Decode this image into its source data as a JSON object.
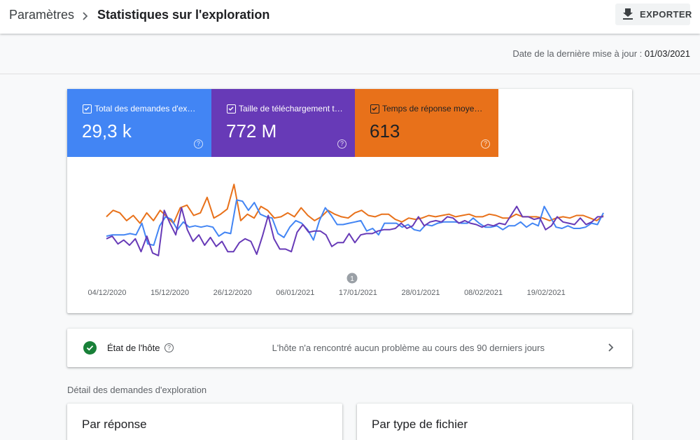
{
  "header": {
    "breadcrumb_parent": "Paramètres",
    "page_title": "Statistiques sur l'exploration",
    "export_label": "EXPORTER"
  },
  "update": {
    "label": "Date de la dernière mise à jour : ",
    "value": "01/03/2021"
  },
  "metrics": [
    {
      "label": "Total des demandes d'exploration",
      "value": "29,3 k",
      "color": "#4285f4",
      "checked": true
    },
    {
      "label": "Taille de téléchargement totale",
      "value": "772 M",
      "color": "#673ab7",
      "checked": true
    },
    {
      "label": "Temps de réponse moyen (ms)",
      "value": "613",
      "color": "#e8711a",
      "checked": true
    }
  ],
  "chart_data": {
    "type": "line",
    "x_ticks": [
      "04/12/2020",
      "15/12/2020",
      "26/12/2020",
      "06/01/2021",
      "17/01/2021",
      "28/01/2021",
      "08/02/2021",
      "19/02/2021"
    ],
    "annotation": "1",
    "series": [
      {
        "name": "Total des demandes d'exploration",
        "color": "#4285f4",
        "values": [
          40,
          41,
          41,
          41,
          42,
          41,
          50,
          34,
          33,
          48,
          55,
          53,
          45,
          51,
          47,
          48,
          47,
          48,
          47,
          40,
          43,
          42,
          68,
          67,
          60,
          66,
          57,
          55,
          54,
          42,
          39,
          47,
          52,
          50,
          45,
          37,
          52,
          62,
          56,
          49,
          49,
          50,
          51,
          52,
          44,
          46,
          41,
          50,
          50,
          50,
          47,
          49,
          45,
          44,
          49,
          48,
          50,
          51,
          51,
          51,
          50,
          50,
          54,
          50,
          47,
          47,
          48,
          45,
          48,
          48,
          51,
          47,
          50,
          48,
          63,
          55,
          47,
          46,
          48,
          46,
          46,
          47,
          50,
          49,
          58
        ]
      },
      {
        "name": "Taille de téléchargement totale",
        "color": "#673ab7",
        "values": [
          38,
          40,
          34,
          37,
          33,
          38,
          28,
          40,
          27,
          25,
          60,
          50,
          41,
          62,
          45,
          36,
          41,
          33,
          39,
          32,
          36,
          28,
          28,
          35,
          38,
          36,
          26,
          40,
          56,
          38,
          30,
          30,
          28,
          43,
          49,
          43,
          44,
          44,
          41,
          32,
          35,
          35,
          42,
          35,
          41,
          42,
          42,
          44,
          45,
          45,
          46,
          50,
          46,
          48,
          55,
          48,
          51,
          52,
          51,
          55,
          54,
          50,
          52,
          50,
          49,
          47,
          49,
          48,
          50,
          49,
          56,
          63,
          55,
          55,
          53,
          54,
          45,
          48,
          55,
          51,
          50,
          49,
          54,
          49,
          51,
          55,
          55
        ]
      },
      {
        "name": "Temps de réponse moyen (ms)",
        "color": "#e8711a",
        "values": [
          55,
          60,
          58,
          52,
          56,
          50,
          58,
          52,
          60,
          55,
          50,
          62,
          64,
          56,
          58,
          70,
          54,
          57,
          61,
          80,
          52,
          57,
          54,
          63,
          60,
          54,
          55,
          58,
          55,
          62,
          56,
          52,
          55,
          60,
          57,
          55,
          54,
          58,
          60,
          56,
          55,
          57,
          57,
          53,
          51,
          54,
          53,
          54,
          56,
          55,
          56,
          57,
          55,
          56,
          57,
          55,
          55,
          57,
          56,
          54,
          54,
          57,
          55,
          55,
          55,
          54,
          52,
          54,
          55,
          54,
          56,
          56,
          54,
          52,
          56
        ]
      }
    ]
  },
  "host": {
    "title": "État de l'hôte",
    "help": "?",
    "message": "L'hôte n'a rencontré aucun problème au cours des 90 derniers jours"
  },
  "details": {
    "section_title": "Détail des demandes d'exploration",
    "card_a_title": "Par réponse",
    "card_b_title": "Par type de fichier"
  },
  "help_glyph": "?"
}
